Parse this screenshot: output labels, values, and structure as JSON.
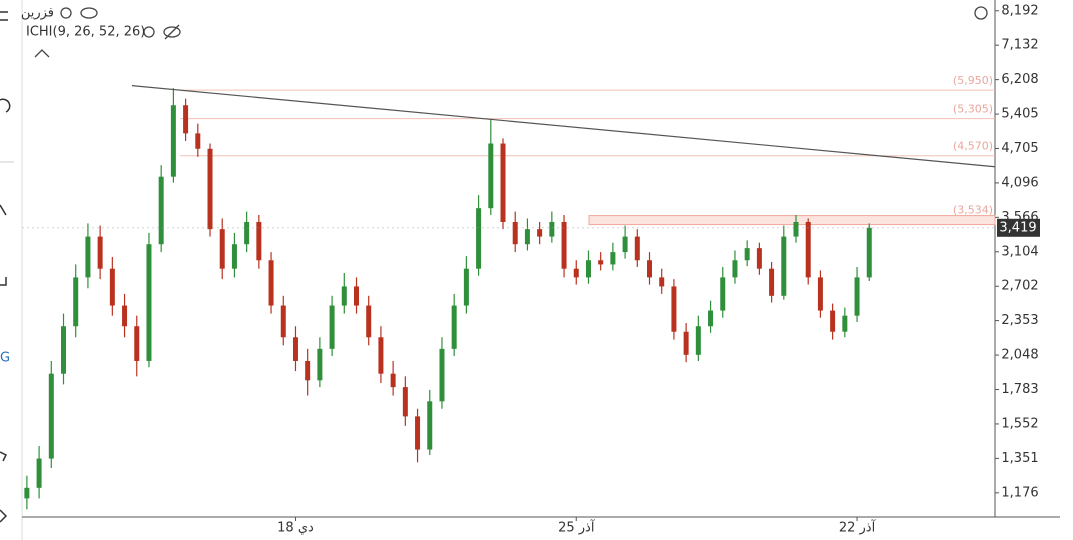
{
  "chart_data": {
    "type": "candlestick",
    "title": "فزرين",
    "indicator": "ICHI(9, 26, 52, 26)",
    "log_scale": true,
    "up_color": "#2f8f3a",
    "down_color": "#b8321f",
    "open": [
      1150,
      1200,
      1350,
      1900,
      2300,
      2800,
      3300,
      2900,
      2500,
      2300,
      2000,
      3200,
      4200,
      5600,
      5000,
      4700,
      3400,
      2900,
      3200,
      3500,
      3000,
      2500,
      2200,
      2000,
      1850,
      2100,
      2500,
      2700,
      2500,
      2200,
      1900,
      1800,
      1600,
      1400,
      1700,
      2100,
      2500,
      2900,
      3700,
      4800,
      3500,
      3200,
      3400,
      3300,
      3500,
      2900,
      2800,
      3000,
      2950,
      3100,
      3300,
      3000,
      2800,
      2700,
      2250,
      2050,
      2300,
      2450,
      2800,
      3000,
      3150,
      2900,
      2600,
      3300,
      3500,
      2800,
      2450,
      2250,
      2400,
      2800
    ],
    "high": [
      1260,
      1420,
      2000,
      2420,
      2950,
      3480,
      3450,
      3040,
      2620,
      2400,
      3350,
      4400,
      6000,
      5750,
      5200,
      4800,
      3550,
      3350,
      3650,
      3600,
      3100,
      2600,
      2300,
      2100,
      2200,
      2600,
      2850,
      2800,
      2600,
      2300,
      2000,
      1880,
      1650,
      1780,
      2200,
      2620,
      3050,
      3900,
      5300,
      4900,
      3650,
      3550,
      3500,
      3650,
      3600,
      3000,
      3120,
      3100,
      3220,
      3450,
      3400,
      3100,
      2900,
      2780,
      2330,
      2400,
      2550,
      2920,
      3120,
      3250,
      3220,
      2980,
      3450,
      3600,
      3550,
      2880,
      2520,
      2480,
      2920,
      3480
    ],
    "low": [
      1100,
      1150,
      1300,
      1820,
      2200,
      2680,
      2780,
      2400,
      2200,
      1880,
      1950,
      3100,
      4100,
      4850,
      4550,
      3300,
      2780,
      2800,
      3100,
      2900,
      2420,
      2130,
      1920,
      1740,
      1800,
      2040,
      2420,
      2420,
      2130,
      1830,
      1740,
      1540,
      1330,
      1370,
      1650,
      2040,
      2420,
      2820,
      3600,
      3400,
      3100,
      3120,
      3200,
      3220,
      2800,
      2720,
      2730,
      2880,
      2880,
      3020,
      2920,
      2720,
      2620,
      2180,
      1990,
      2000,
      2240,
      2380,
      2730,
      2930,
      2830,
      2530,
      2560,
      3220,
      2720,
      2380,
      2180,
      2200,
      2340,
      2760
    ],
    "close": [
      1200,
      1350,
      1900,
      2300,
      2800,
      3300,
      2900,
      2500,
      2300,
      2000,
      3200,
      4200,
      5600,
      5000,
      4700,
      3400,
      2900,
      3200,
      3500,
      3000,
      2500,
      2200,
      2000,
      1850,
      2100,
      2500,
      2700,
      2500,
      2200,
      1900,
      1800,
      1600,
      1400,
      1700,
      2100,
      2500,
      2900,
      3700,
      4800,
      3500,
      3200,
      3400,
      3300,
      3500,
      2900,
      2800,
      3000,
      2950,
      3100,
      3300,
      3000,
      2800,
      2700,
      2250,
      2050,
      2300,
      2450,
      2800,
      3000,
      3150,
      2900,
      2600,
      3300,
      3500,
      2800,
      2450,
      2250,
      2400,
      2800,
      3419
    ],
    "xlim": [
      -0.4,
      79.3
    ],
    "xticks": [
      {
        "value": 22,
        "label": "18 دي"
      },
      {
        "value": 45,
        "label": "25 آذر"
      },
      {
        "value": 68,
        "label": "22 آذر"
      }
    ],
    "ylim": [
      1067,
      8555
    ],
    "yticks": [
      {
        "value": 8192,
        "label": "8,192"
      },
      {
        "value": 7132,
        "label": "7,132"
      },
      {
        "value": 6208,
        "label": "6,208"
      },
      {
        "value": 5405,
        "label": "5,405"
      },
      {
        "value": 4705,
        "label": "4,705"
      },
      {
        "value": 4096,
        "label": "4,096"
      },
      {
        "value": 3566,
        "label": "3,566"
      },
      {
        "value": 3104,
        "label": "3,104"
      },
      {
        "value": 2702,
        "label": "2,702"
      },
      {
        "value": 2353,
        "label": "2,353"
      },
      {
        "value": 2048,
        "label": "2,048"
      },
      {
        "value": 1783,
        "label": "1,783"
      },
      {
        "value": 1552,
        "label": "1,552"
      },
      {
        "value": 1351,
        "label": "1,351"
      },
      {
        "value": 1176,
        "label": "1,176"
      }
    ],
    "levels": [
      {
        "value": 5950,
        "label": "(5,950)"
      },
      {
        "value": 5305,
        "label": "(5,305)"
      },
      {
        "value": 4570,
        "label": "(4,570)"
      },
      {
        "value": 3534,
        "label": "(3,534)"
      }
    ],
    "trendline": {
      "x": [
        8.6,
        79.3
      ],
      "y": [
        6060,
        4372
      ]
    },
    "last_price": {
      "value": 3419,
      "label": "3,419"
    }
  }
}
